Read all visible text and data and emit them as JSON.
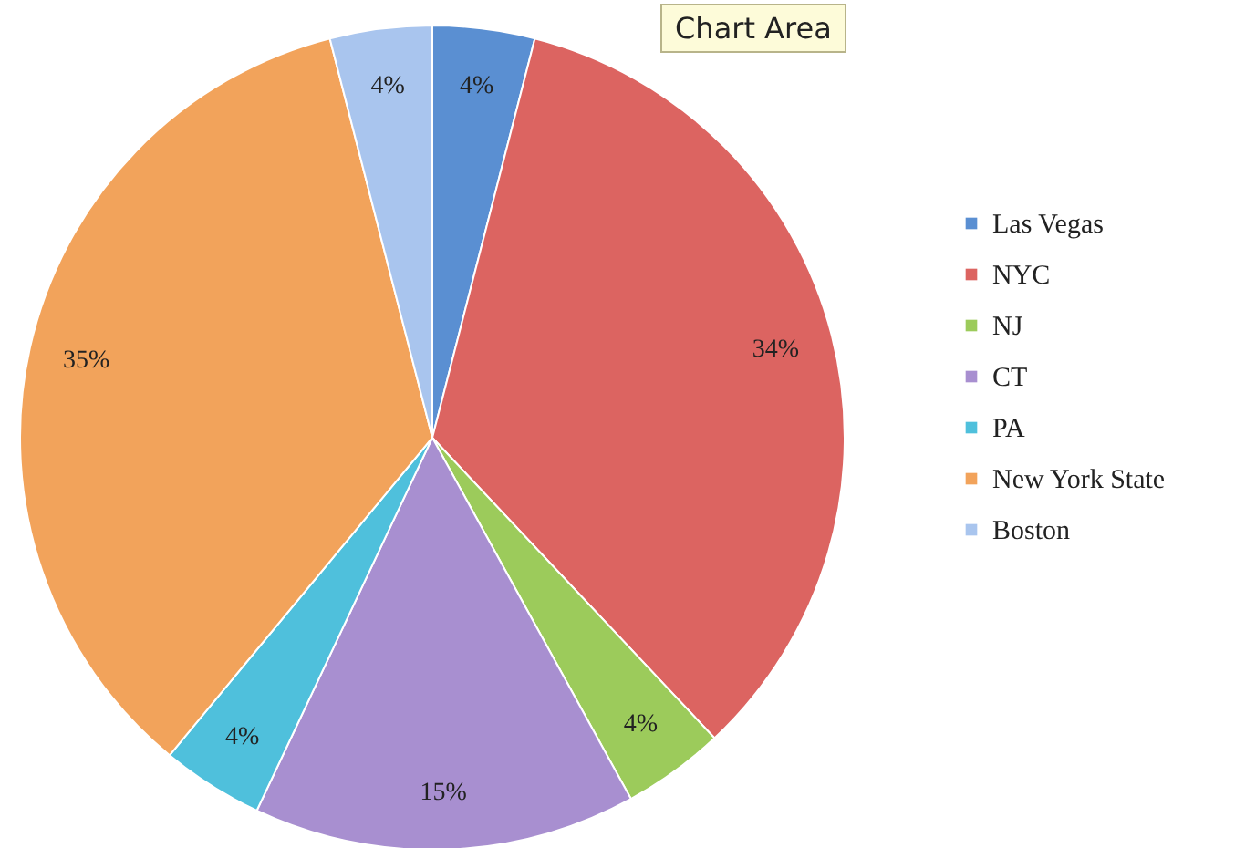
{
  "chart_data": {
    "type": "pie",
    "categories": [
      "Las Vegas",
      "NYC",
      "NJ",
      "CT",
      "PA",
      "New York State",
      "Boston"
    ],
    "values": [
      4,
      34,
      4,
      15,
      4,
      35,
      4
    ],
    "colors": [
      "#5a8fd2",
      "#dc6461",
      "#9ccb5b",
      "#a88fd0",
      "#4fc0dc",
      "#f2a35b",
      "#a9c5ee"
    ],
    "value_labels": [
      "4%",
      "34%",
      "4%",
      "15%",
      "4%",
      "35%",
      "4%"
    ],
    "legend": "right",
    "annotations": [
      "Chart Area"
    ]
  }
}
